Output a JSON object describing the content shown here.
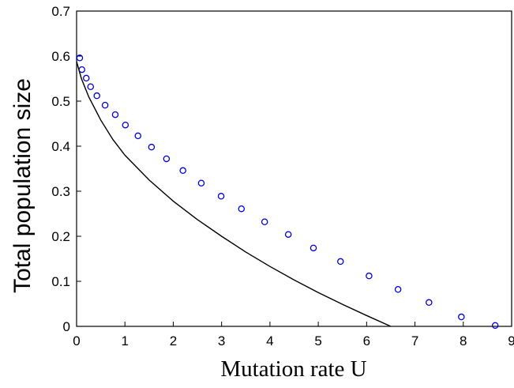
{
  "chart_data": {
    "type": "scatter",
    "xlabel": "Mutation rate U",
    "ylabel": "Total population size",
    "xlim": [
      0,
      9
    ],
    "ylim": [
      0,
      0.7
    ],
    "xticks": [
      0,
      1,
      2,
      3,
      4,
      5,
      6,
      7,
      8,
      9
    ],
    "yticks": [
      0,
      0.1,
      0.2,
      0.3,
      0.4,
      0.5,
      0.6,
      0.7
    ],
    "series": [
      {
        "kind": "markers",
        "color": "#0000dd",
        "x": [
          0.065,
          0.11,
          0.2,
          0.29,
          0.42,
          0.59,
          0.8,
          1.01,
          1.27,
          1.55,
          1.86,
          2.2,
          2.58,
          2.99,
          3.41,
          3.89,
          4.38,
          4.9,
          5.46,
          6.05,
          6.65,
          7.29,
          7.96,
          8.66
        ],
        "values": [
          0.596,
          0.57,
          0.551,
          0.532,
          0.512,
          0.491,
          0.47,
          0.447,
          0.423,
          0.398,
          0.372,
          0.346,
          0.318,
          0.289,
          0.261,
          0.232,
          0.204,
          0.174,
          0.144,
          0.112,
          0.082,
          0.053,
          0.021,
          0.002
        ]
      },
      {
        "kind": "line",
        "color": "#000000",
        "x": [
          0,
          0.1,
          0.25,
          0.5,
          0.75,
          1,
          1.5,
          2,
          2.5,
          3,
          3.5,
          4,
          4.5,
          5,
          5.5,
          6,
          6.5
        ],
        "values": [
          0.588,
          0.55,
          0.51,
          0.458,
          0.415,
          0.38,
          0.325,
          0.278,
          0.237,
          0.2,
          0.165,
          0.133,
          0.103,
          0.075,
          0.049,
          0.024,
          0.0
        ]
      }
    ]
  }
}
